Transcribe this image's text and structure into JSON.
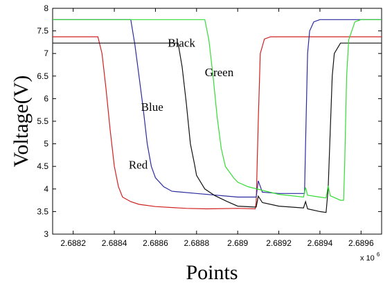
{
  "chart_data": {
    "type": "line",
    "title": "",
    "xlabel": "Points",
    "ylabel": "Voltage(V)",
    "x_multiplier_label": "x 10",
    "x_multiplier_exponent": "6",
    "xlim": [
      2.6881,
      2.6897
    ],
    "ylim": [
      3,
      8
    ],
    "xticks": [
      2.6882,
      2.6884,
      2.6886,
      2.6888,
      2.689,
      2.6892,
      2.6894,
      2.6896
    ],
    "xtick_labels": [
      "2.6882",
      "2.6884",
      "2.6886",
      "2.6888",
      "2.689",
      "2.6892",
      "2.6894",
      "2.6896"
    ],
    "yticks": [
      3,
      3.5,
      4,
      4.5,
      5,
      5.5,
      6,
      6.5,
      7,
      7.5,
      8
    ],
    "ytick_labels": [
      "3",
      "3.5",
      "4",
      "4.5",
      "5",
      "5.5",
      "6",
      "6.5",
      "7",
      "7.5",
      "8"
    ],
    "grid": false,
    "annotations": [
      {
        "text": "Red",
        "x": 2.68847,
        "y": 4.45
      },
      {
        "text": "Blue",
        "x": 2.68853,
        "y": 5.73
      },
      {
        "text": "Black",
        "x": 2.68866,
        "y": 7.15
      },
      {
        "text": "Green",
        "x": 2.68884,
        "y": 6.5
      }
    ],
    "series": [
      {
        "name": "Red",
        "color": "#d02020",
        "points": [
          [
            2.6881,
            7.37
          ],
          [
            2.68832,
            7.37
          ],
          [
            2.68834,
            7.0
          ],
          [
            2.68836,
            6.2
          ],
          [
            2.68838,
            5.3
          ],
          [
            2.6884,
            4.5
          ],
          [
            2.68842,
            4.05
          ],
          [
            2.68844,
            3.82
          ],
          [
            2.68848,
            3.72
          ],
          [
            2.68852,
            3.66
          ],
          [
            2.6886,
            3.61
          ],
          [
            2.68875,
            3.57
          ],
          [
            2.68885,
            3.56
          ],
          [
            2.689,
            3.57
          ],
          [
            2.689085,
            3.56
          ],
          [
            2.68909,
            3.7
          ],
          [
            2.6891,
            5.5
          ],
          [
            2.68911,
            7.0
          ],
          [
            2.68913,
            7.32
          ],
          [
            2.68916,
            7.37
          ],
          [
            2.6897,
            7.37
          ]
        ]
      },
      {
        "name": "Blue",
        "color": "#2a2aa0",
        "points": [
          [
            2.6881,
            7.75
          ],
          [
            2.68848,
            7.75
          ],
          [
            2.6885,
            7.2
          ],
          [
            2.68852,
            6.5
          ],
          [
            2.68854,
            5.8
          ],
          [
            2.68856,
            5.0
          ],
          [
            2.68858,
            4.5
          ],
          [
            2.6886,
            4.25
          ],
          [
            2.68864,
            4.05
          ],
          [
            2.68868,
            3.95
          ],
          [
            2.6888,
            3.9
          ],
          [
            2.689,
            3.82
          ],
          [
            2.68909,
            3.82
          ],
          [
            2.6891,
            4.18
          ],
          [
            2.68912,
            3.93
          ],
          [
            2.6892,
            3.9
          ],
          [
            2.689325,
            3.9
          ],
          [
            2.68933,
            5.0
          ],
          [
            2.68934,
            7.0
          ],
          [
            2.68935,
            7.5
          ],
          [
            2.68937,
            7.7
          ],
          [
            2.6894,
            7.75
          ],
          [
            2.6897,
            7.75
          ]
        ]
      },
      {
        "name": "Black",
        "color": "#111111",
        "points": [
          [
            2.6881,
            7.23
          ],
          [
            2.68871,
            7.23
          ],
          [
            2.68873,
            6.7
          ],
          [
            2.68875,
            5.9
          ],
          [
            2.68877,
            5.0
          ],
          [
            2.68879,
            4.55
          ],
          [
            2.6888,
            4.3
          ],
          [
            2.68884,
            4.0
          ],
          [
            2.68889,
            3.85
          ],
          [
            2.68895,
            3.72
          ],
          [
            2.689,
            3.62
          ],
          [
            2.68908,
            3.6
          ],
          [
            2.68909,
            3.6
          ],
          [
            2.6891,
            3.84
          ],
          [
            2.68912,
            3.7
          ],
          [
            2.6892,
            3.62
          ],
          [
            2.68932,
            3.58
          ],
          [
            2.68933,
            3.72
          ],
          [
            2.68934,
            3.56
          ],
          [
            2.6894,
            3.5
          ],
          [
            2.68943,
            3.48
          ],
          [
            2.68944,
            4.0
          ],
          [
            2.68946,
            6.5
          ],
          [
            2.68947,
            7.0
          ],
          [
            2.6895,
            7.23
          ],
          [
            2.6897,
            7.23
          ]
        ]
      },
      {
        "name": "Green",
        "color": "#33dd33",
        "points": [
          [
            2.6881,
            7.75
          ],
          [
            2.68884,
            7.75
          ],
          [
            2.68886,
            7.3
          ],
          [
            2.68888,
            6.5
          ],
          [
            2.6889,
            5.6
          ],
          [
            2.68892,
            4.9
          ],
          [
            2.68894,
            4.5
          ],
          [
            2.68898,
            4.25
          ],
          [
            2.689,
            4.15
          ],
          [
            2.68905,
            4.05
          ],
          [
            2.6892,
            3.88
          ],
          [
            2.68932,
            3.82
          ],
          [
            2.68933,
            4.03
          ],
          [
            2.68934,
            3.86
          ],
          [
            2.6894,
            3.82
          ],
          [
            2.68943,
            3.8
          ],
          [
            2.68944,
            4.07
          ],
          [
            2.68945,
            3.85
          ],
          [
            2.6895,
            3.75
          ],
          [
            2.689515,
            3.75
          ],
          [
            2.68952,
            4.5
          ],
          [
            2.68953,
            6.5
          ],
          [
            2.68954,
            7.3
          ],
          [
            2.68957,
            7.7
          ],
          [
            2.6896,
            7.75
          ],
          [
            2.6897,
            7.75
          ]
        ]
      }
    ]
  }
}
